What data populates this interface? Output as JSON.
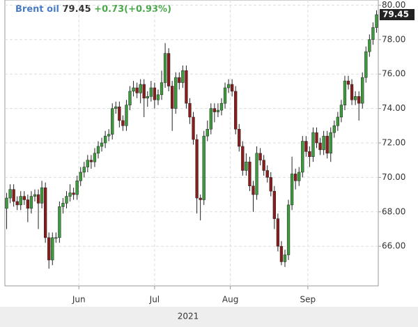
{
  "chart_data": {
    "type": "candlestick",
    "title": "Brent oil",
    "change": "+0.73(+0.93%)",
    "x_label": "2021",
    "up_color": "#3d9a3d",
    "down_color": "#8a1c1c",
    "open": [
      68.2,
      68.8,
      69.3,
      68.6,
      68.4,
      68.9,
      68.7,
      68.2,
      68.9,
      69.0,
      68.5,
      69.4,
      66.5,
      65.2,
      66.5,
      66.5,
      68.3,
      68.5,
      68.9,
      69.1,
      69.0,
      69.8,
      70.3,
      70.6,
      71.0,
      70.9,
      71.4,
      71.8,
      72.0,
      72.4,
      72.5,
      74.0,
      74.1,
      73.3,
      73.0,
      74.2,
      75.0,
      75.2,
      74.9,
      75.4,
      74.6,
      74.7,
      75.2,
      74.5,
      74.8,
      75.5,
      77.2,
      75.3,
      74.0,
      75.8,
      75.5,
      76.2,
      74.3,
      73.5,
      72.2,
      68.8,
      68.7,
      72.4,
      72.8,
      74.0,
      73.8,
      73.9,
      74.3,
      75.2,
      75.4,
      75.0,
      72.8,
      71.8,
      70.4,
      70.9,
      69.5,
      69.0,
      71.4,
      71.0,
      70.4,
      70.0,
      69.2,
      67.6,
      66.0,
      65.1,
      65.5,
      68.4,
      70.2,
      69.8,
      70.3,
      72.1,
      71.5,
      71.2,
      72.6,
      72.0,
      71.6,
      72.4,
      71.4,
      72.6,
      73.0,
      73.5,
      74.2,
      75.6,
      75.4,
      74.5,
      74.7,
      74.3,
      75.8,
      77.3,
      78.0,
      78.7
    ],
    "high": [
      69.1,
      69.6,
      69.6,
      68.9,
      69.2,
      69.2,
      69.0,
      69.2,
      69.3,
      69.3,
      69.8,
      69.7,
      66.8,
      66.8,
      66.8,
      68.6,
      68.8,
      69.2,
      69.6,
      69.4,
      70.1,
      70.6,
      70.9,
      71.3,
      71.3,
      71.7,
      72.1,
      72.3,
      72.7,
      72.8,
      74.3,
      74.4,
      74.4,
      73.6,
      74.5,
      75.3,
      75.6,
      75.5,
      75.7,
      75.7,
      75.0,
      75.6,
      75.5,
      75.1,
      76.2,
      77.8,
      77.5,
      75.6,
      76.1,
      76.1,
      76.5,
      76.5,
      74.6,
      73.8,
      72.5,
      69.0,
      72.7,
      73.3,
      74.3,
      74.3,
      74.3,
      74.6,
      75.5,
      75.7,
      75.7,
      75.3,
      73.1,
      72.1,
      71.4,
      71.2,
      69.8,
      71.8,
      71.7,
      71.3,
      70.7,
      70.3,
      69.5,
      67.9,
      66.3,
      65.8,
      68.7,
      71.2,
      70.5,
      70.6,
      72.4,
      72.4,
      71.8,
      72.9,
      72.9,
      72.3,
      72.7,
      72.7,
      72.9,
      73.3,
      73.8,
      74.5,
      75.9,
      75.9,
      75.7,
      75.0,
      75.0,
      76.1,
      77.6,
      78.3,
      79.0,
      79.7
    ],
    "low": [
      67.0,
      68.5,
      68.3,
      68.1,
      68.1,
      68.4,
      67.4,
      67.9,
      68.6,
      67.0,
      68.2,
      66.2,
      64.7,
      64.9,
      66.2,
      66.2,
      67.9,
      68.2,
      68.6,
      68.7,
      68.7,
      69.5,
      70.0,
      70.3,
      70.5,
      70.6,
      71.1,
      71.5,
      71.7,
      72.1,
      72.2,
      73.7,
      72.9,
      72.7,
      72.7,
      73.9,
      74.7,
      74.6,
      74.3,
      73.5,
      74.1,
      74.4,
      74.0,
      74.2,
      74.5,
      75.2,
      75.0,
      72.7,
      73.7,
      75.1,
      75.2,
      74.0,
      73.1,
      71.9,
      67.9,
      67.5,
      68.4,
      72.1,
      72.5,
      73.2,
      73.5,
      73.6,
      74.0,
      74.9,
      74.7,
      72.5,
      71.5,
      70.1,
      70.1,
      69.2,
      68.0,
      68.7,
      70.7,
      70.1,
      69.7,
      68.9,
      67.0,
      65.7,
      64.9,
      64.8,
      65.2,
      68.1,
      69.3,
      69.5,
      70.0,
      71.2,
      70.6,
      70.9,
      71.7,
      71.3,
      71.3,
      71.1,
      70.9,
      72.3,
      72.7,
      73.2,
      73.9,
      75.1,
      74.2,
      74.2,
      73.3,
      74.0,
      75.5,
      77.0,
      77.7,
      78.4
    ],
    "close": [
      68.8,
      69.3,
      68.6,
      68.4,
      68.9,
      68.7,
      68.2,
      68.9,
      69.0,
      68.5,
      69.4,
      66.5,
      65.2,
      66.5,
      66.5,
      68.3,
      68.5,
      68.9,
      69.1,
      69.0,
      69.8,
      70.3,
      70.6,
      71.0,
      70.9,
      71.4,
      71.8,
      72.0,
      72.4,
      72.5,
      74.0,
      74.1,
      73.3,
      73.0,
      74.2,
      75.0,
      75.2,
      74.9,
      75.4,
      74.6,
      74.7,
      75.2,
      74.5,
      74.8,
      75.5,
      77.2,
      75.3,
      74.0,
      75.8,
      75.5,
      76.2,
      74.3,
      73.5,
      72.2,
      68.8,
      68.7,
      72.4,
      72.8,
      74.0,
      73.8,
      73.9,
      74.3,
      75.2,
      75.4,
      75.0,
      72.8,
      71.8,
      70.4,
      70.9,
      69.5,
      69.0,
      71.4,
      71.0,
      70.4,
      70.0,
      69.2,
      67.6,
      66.0,
      65.1,
      65.5,
      68.4,
      70.2,
      69.8,
      70.3,
      72.1,
      71.5,
      71.2,
      72.6,
      72.0,
      71.6,
      72.4,
      71.4,
      72.6,
      73.0,
      73.5,
      74.2,
      75.6,
      75.4,
      74.5,
      74.7,
      74.3,
      75.8,
      77.3,
      78.0,
      78.7,
      79.45
    ],
    "xlim": [
      -0.5,
      105.5
    ],
    "xticks": [
      {
        "value": 20.5,
        "label": "Jun"
      },
      {
        "value": 42,
        "label": "Jul"
      },
      {
        "value": 63.5,
        "label": "Aug"
      },
      {
        "value": 85.5,
        "label": "Sep"
      }
    ],
    "ylim": [
      63.7,
      80.3
    ],
    "yticks": [
      {
        "value": 66,
        "label": "66.00"
      },
      {
        "value": 68,
        "label": "68.00"
      },
      {
        "value": 70,
        "label": "70.00"
      },
      {
        "value": 72,
        "label": "72.00"
      },
      {
        "value": 74,
        "label": "74.00"
      },
      {
        "value": 76,
        "label": "76.00"
      },
      {
        "value": 78,
        "label": "78.00"
      },
      {
        "value": 80,
        "label": "80.00"
      }
    ],
    "grid": true
  }
}
